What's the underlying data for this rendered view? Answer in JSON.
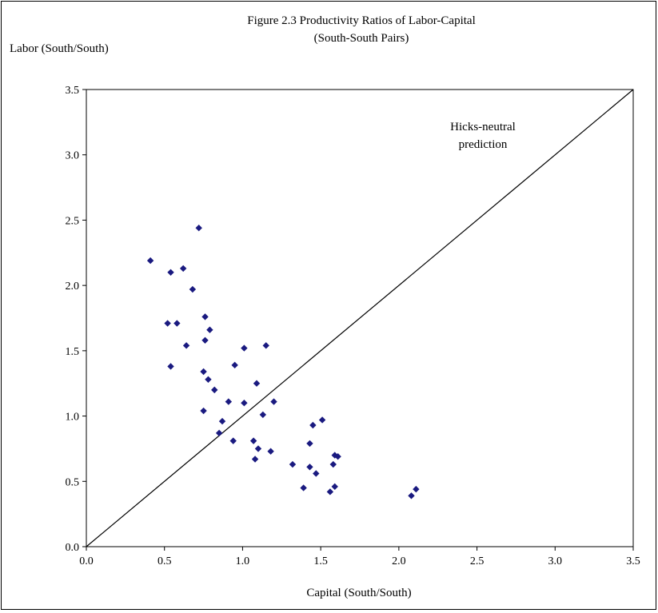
{
  "chart_data": {
    "type": "scatter",
    "title_lines": [
      "Figure 2.3 Productivity Ratios of Labor-Capital",
      "(South-South Pairs)"
    ],
    "xlabel": "Capital (South/South)",
    "ylabel": "Labor (South/South)",
    "xlim": [
      0,
      3.5
    ],
    "ylim": [
      0,
      3.5
    ],
    "x_ticks": [
      "0.0",
      "0.5",
      "1.0",
      "1.5",
      "2.0",
      "2.5",
      "3.0",
      "3.5"
    ],
    "y_ticks": [
      "0.0",
      "0.5",
      "1.0",
      "1.5",
      "2.0",
      "2.5",
      "3.0",
      "3.5"
    ],
    "grid": false,
    "marker": "diamond",
    "marker_color": "#1a1a80",
    "line_color": "#000000",
    "reference_line": {
      "from": [
        0,
        0
      ],
      "to": [
        3.5,
        3.5
      ]
    },
    "annotation": [
      "Hicks-neutral",
      "prediction"
    ],
    "points": [
      [
        0.41,
        2.19
      ],
      [
        0.72,
        2.44
      ],
      [
        0.54,
        2.1
      ],
      [
        0.62,
        2.13
      ],
      [
        0.68,
        1.97
      ],
      [
        0.52,
        1.71
      ],
      [
        0.58,
        1.71
      ],
      [
        0.76,
        1.76
      ],
      [
        0.79,
        1.66
      ],
      [
        0.76,
        1.58
      ],
      [
        0.64,
        1.54
      ],
      [
        0.54,
        1.38
      ],
      [
        1.01,
        1.52
      ],
      [
        1.15,
        1.54
      ],
      [
        0.95,
        1.39
      ],
      [
        0.75,
        1.34
      ],
      [
        0.78,
        1.28
      ],
      [
        1.09,
        1.25
      ],
      [
        0.82,
        1.2
      ],
      [
        0.91,
        1.11
      ],
      [
        1.01,
        1.1
      ],
      [
        1.2,
        1.11
      ],
      [
        0.75,
        1.04
      ],
      [
        1.13,
        1.01
      ],
      [
        0.87,
        0.96
      ],
      [
        0.85,
        0.87
      ],
      [
        0.94,
        0.81
      ],
      [
        1.07,
        0.81
      ],
      [
        1.1,
        0.75
      ],
      [
        1.08,
        0.67
      ],
      [
        1.18,
        0.73
      ],
      [
        1.51,
        0.97
      ],
      [
        1.45,
        0.93
      ],
      [
        1.43,
        0.79
      ],
      [
        1.59,
        0.7
      ],
      [
        1.61,
        0.69
      ],
      [
        1.58,
        0.63
      ],
      [
        1.32,
        0.63
      ],
      [
        1.43,
        0.61
      ],
      [
        1.47,
        0.56
      ],
      [
        1.39,
        0.45
      ],
      [
        1.59,
        0.46
      ],
      [
        1.56,
        0.42
      ],
      [
        2.11,
        0.44
      ],
      [
        2.08,
        0.39
      ]
    ]
  }
}
